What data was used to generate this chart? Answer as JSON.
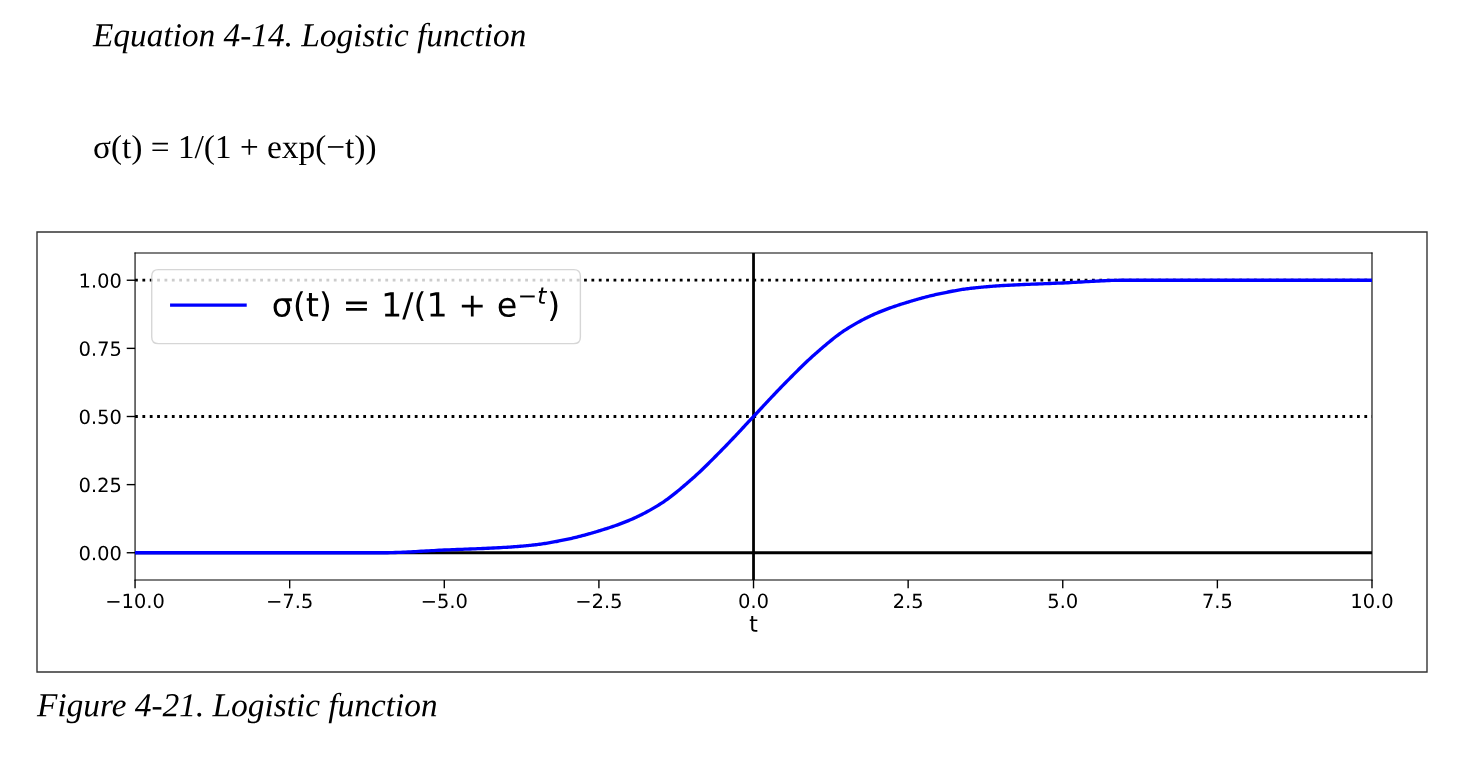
{
  "chart_data": {
    "type": "line",
    "title": "Equation 4-14. Logistic function",
    "subtitle": "σ(t) = 1/(1 + exp(−t))",
    "annotations": [
      "Figure 4-21. Logistic function"
    ],
    "xlabel": "t",
    "x": [
      -10,
      -6,
      -5,
      -4,
      -3.5,
      -3,
      -2.5,
      -2,
      -1.5,
      -1,
      -0.5,
      0,
      0.5,
      1,
      1.5,
      2,
      2.5,
      3,
      3.5,
      4,
      5,
      6,
      10
    ],
    "series": [
      {
        "name": "σ(t) = 1/(1 + e$^{−t}$)",
        "color": "#0000ff",
        "values": [
          0.0,
          0.0,
          0.01,
          0.02,
          0.03,
          0.05,
          0.08,
          0.12,
          0.18,
          0.27,
          0.38,
          0.5,
          0.62,
          0.73,
          0.82,
          0.88,
          0.92,
          0.95,
          0.97,
          0.98,
          0.99,
          1.0,
          1.0
        ]
      }
    ],
    "xlim": [
      -10,
      10
    ],
    "ylim": [
      -0.1,
      1.1
    ],
    "xticks": [
      {
        "value": -10,
        "label": "−10.0"
      },
      {
        "value": -7.5,
        "label": "−7.5"
      },
      {
        "value": -5,
        "label": "−5.0"
      },
      {
        "value": -2.5,
        "label": "−2.5"
      },
      {
        "value": 0,
        "label": "0.0"
      },
      {
        "value": 2.5,
        "label": "2.5"
      },
      {
        "value": 5,
        "label": "5.0"
      },
      {
        "value": 7.5,
        "label": "7.5"
      },
      {
        "value": 10,
        "label": "10.0"
      }
    ],
    "yticks": [
      {
        "value": 0,
        "label": "0.00"
      },
      {
        "value": 0.25,
        "label": "0.25"
      },
      {
        "value": 0.5,
        "label": "0.50"
      },
      {
        "value": 0.75,
        "label": "0.75"
      },
      {
        "value": 1,
        "label": "1.00"
      }
    ],
    "ref_lines": [
      {
        "axis": "y",
        "value": 0,
        "color": "#000000",
        "line_style": "solid"
      },
      {
        "axis": "y",
        "value": 0.5,
        "color": "#000000",
        "line_style": "dotted"
      },
      {
        "axis": "y",
        "value": 1,
        "color": "#000000",
        "line_style": "dotted"
      },
      {
        "axis": "x",
        "value": 0,
        "color": "#000000",
        "line_style": "solid"
      }
    ],
    "legend": "top left",
    "grid": false,
    "marker": "none",
    "line_style": "solid"
  }
}
